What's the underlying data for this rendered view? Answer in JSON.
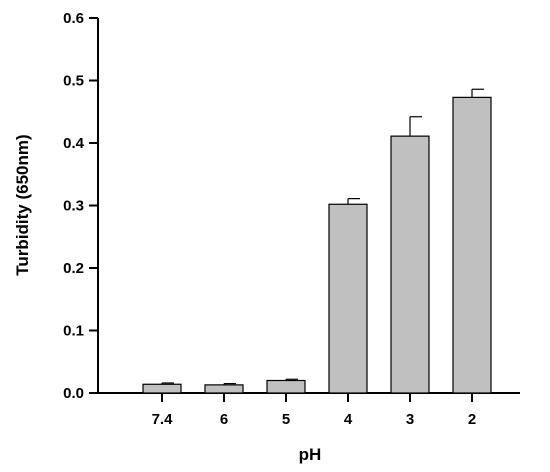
{
  "chart_data": {
    "type": "bar",
    "title": "",
    "xlabel": "pH",
    "ylabel": "Turbidity (650nm)",
    "categories": [
      "7.4",
      "6",
      "5",
      "4",
      "3",
      "2"
    ],
    "series": [
      {
        "values": [
          0.014,
          0.013,
          0.02,
          0.302,
          0.411,
          0.473
        ],
        "error_upper": [
          0.002,
          0.002,
          0.002,
          0.009,
          0.031,
          0.013
        ]
      }
    ],
    "ylim": [
      0,
      0.6
    ],
    "yticks": [
      "0.0",
      "0.1",
      "0.2",
      "0.3",
      "0.4",
      "0.5",
      "0.6"
    ],
    "bar_color": "#c0c0c0",
    "grid": false,
    "legend": "none"
  }
}
